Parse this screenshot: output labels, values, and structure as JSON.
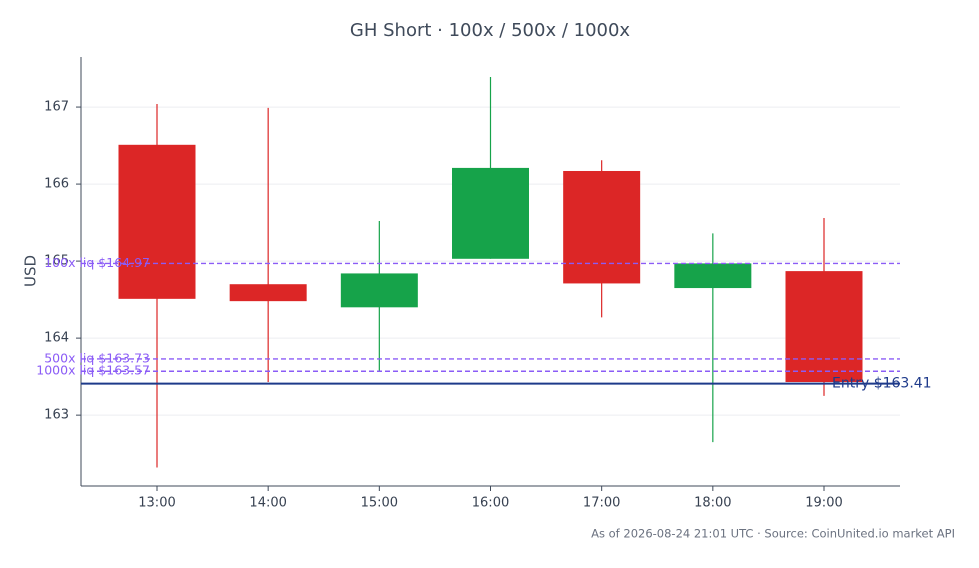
{
  "chart_data": {
    "type": "candlestick",
    "title": "GH Short · 100x / 500x / 1000x",
    "y_label": "USD",
    "categories": [
      "13:00",
      "14:00",
      "15:00",
      "16:00",
      "17:00",
      "18:00",
      "19:00"
    ],
    "open": [
      166.51,
      164.7,
      164.4,
      165.03,
      166.17,
      164.65,
      164.87
    ],
    "high": [
      167.04,
      166.99,
      165.52,
      167.39,
      166.31,
      165.36,
      165.56
    ],
    "low": [
      162.32,
      163.43,
      163.58,
      165.03,
      164.27,
      162.65,
      163.25
    ],
    "close": [
      164.51,
      164.48,
      164.84,
      166.21,
      164.71,
      164.97,
      163.43
    ],
    "up_color": "#16a34a",
    "down_color": "#dc2626",
    "ylim": [
      162.08,
      167.65
    ],
    "yticks": [
      163,
      164,
      165,
      166,
      167
    ],
    "grid": true,
    "reference_lines": [
      {
        "value": 163.41,
        "label": "Entry $163.41",
        "color": "#1e3a8a",
        "style": "solid"
      },
      {
        "value": 164.97,
        "label": "100x liq $164.97",
        "color": "#8b5cf6",
        "style": "dashed"
      },
      {
        "value": 163.73,
        "label": "500x liq $163.73",
        "color": "#8b5cf6",
        "style": "dashed"
      },
      {
        "value": 163.57,
        "label": "1000x liq $163.57",
        "color": "#8b5cf6",
        "style": "dashed"
      }
    ],
    "footer": "As of 2026-08-24 21:01 UTC · Source: CoinUnited.io market API"
  }
}
